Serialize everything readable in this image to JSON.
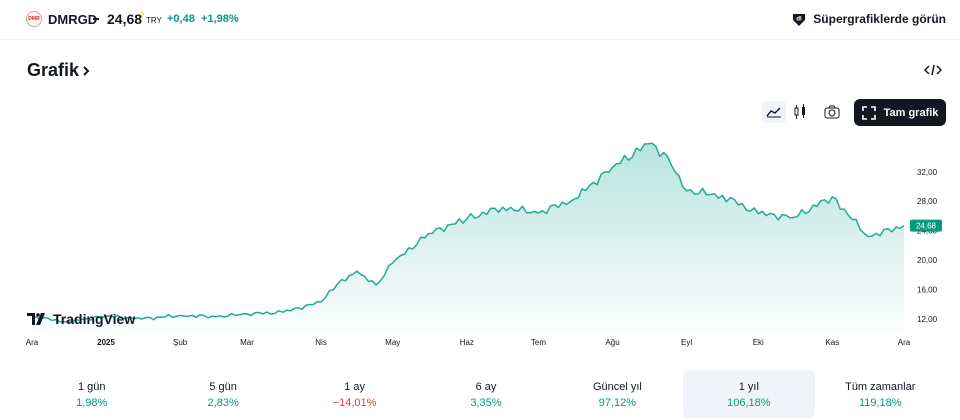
{
  "header": {
    "symbol": "DMRGD",
    "logo_text": "DMRGD",
    "price": "24,68",
    "currency": "TRY",
    "change_abs": "+0,48",
    "change_pct": "+1,98%",
    "super_label": "Süpergrafiklerde görün"
  },
  "section": {
    "title": "Grafik"
  },
  "toolbar": {
    "full_chart_label": "Tam grafik"
  },
  "colors": {
    "line": "#22ab94",
    "positive": "#089981",
    "negative": "#f23645",
    "dark": "#131722"
  },
  "chart_data": {
    "type": "area",
    "title": "",
    "ylim": [
      10.5,
      37
    ],
    "y_ticks": [
      "12,00",
      "16,00",
      "20,00",
      "24,00",
      "28,00",
      "32,00"
    ],
    "y_tick_values": [
      12,
      16,
      20,
      24,
      28,
      32
    ],
    "last_price_label": "24,68",
    "last_price": 24.68,
    "x_ticks": [
      {
        "label": "Ara",
        "date": "2024-12"
      },
      {
        "label": "2025",
        "date": "2025-01"
      },
      {
        "label": "Şub",
        "date": "2025-02"
      },
      {
        "label": "Mar",
        "date": "2025-03"
      },
      {
        "label": "Nis",
        "date": "2025-04"
      },
      {
        "label": "May",
        "date": "2025-05"
      },
      {
        "label": "Haz",
        "date": "2025-06"
      },
      {
        "label": "Tem",
        "date": "2025-07"
      },
      {
        "label": "Ağu",
        "date": "2025-08"
      },
      {
        "label": "Eyl",
        "date": "2025-09"
      },
      {
        "label": "Eki",
        "date": "2025-10"
      },
      {
        "label": "Kas",
        "date": "2025-11"
      },
      {
        "label": "Ara",
        "date": "2025-12"
      }
    ],
    "x": [
      "2024-12-01",
      "2024-12-16",
      "2025-01-01",
      "2025-01-16",
      "2025-02-01",
      "2025-02-16",
      "2025-03-01",
      "2025-03-16",
      "2025-04-01",
      "2025-04-08",
      "2025-04-16",
      "2025-04-24",
      "2025-05-01",
      "2025-05-16",
      "2025-06-01",
      "2025-06-16",
      "2025-07-01",
      "2025-07-16",
      "2025-08-01",
      "2025-08-16",
      "2025-08-24",
      "2025-09-01",
      "2025-09-16",
      "2025-10-01",
      "2025-10-16",
      "2025-11-01",
      "2025-11-16",
      "2025-12-01"
    ],
    "series": [
      {
        "values": [
          12.3,
          11.6,
          12.4,
          12.0,
          12.5,
          12.3,
          12.7,
          12.9,
          14.3,
          16.8,
          18.5,
          16.6,
          19.6,
          23.6,
          25.6,
          27.2,
          26.4,
          28.3,
          32.6,
          35.8,
          34.1,
          29.4,
          28.8,
          26.3,
          25.8,
          28.6,
          23.2,
          24.68
        ]
      }
    ]
  },
  "periods": [
    {
      "label": "1 gün",
      "value": "1,98%",
      "dir": "pos"
    },
    {
      "label": "5 gün",
      "value": "2,83%",
      "dir": "pos"
    },
    {
      "label": "1 ay",
      "value": "−14,01%",
      "dir": "neg"
    },
    {
      "label": "6 ay",
      "value": "3,35%",
      "dir": "pos"
    },
    {
      "label": "Güncel yıl",
      "value": "97,12%",
      "dir": "pos"
    },
    {
      "label": "1 yıl",
      "value": "106,18%",
      "dir": "pos",
      "selected": true
    },
    {
      "label": "Tüm zamanlar",
      "value": "119,18%",
      "dir": "pos"
    }
  ],
  "watermark": "TradingView"
}
